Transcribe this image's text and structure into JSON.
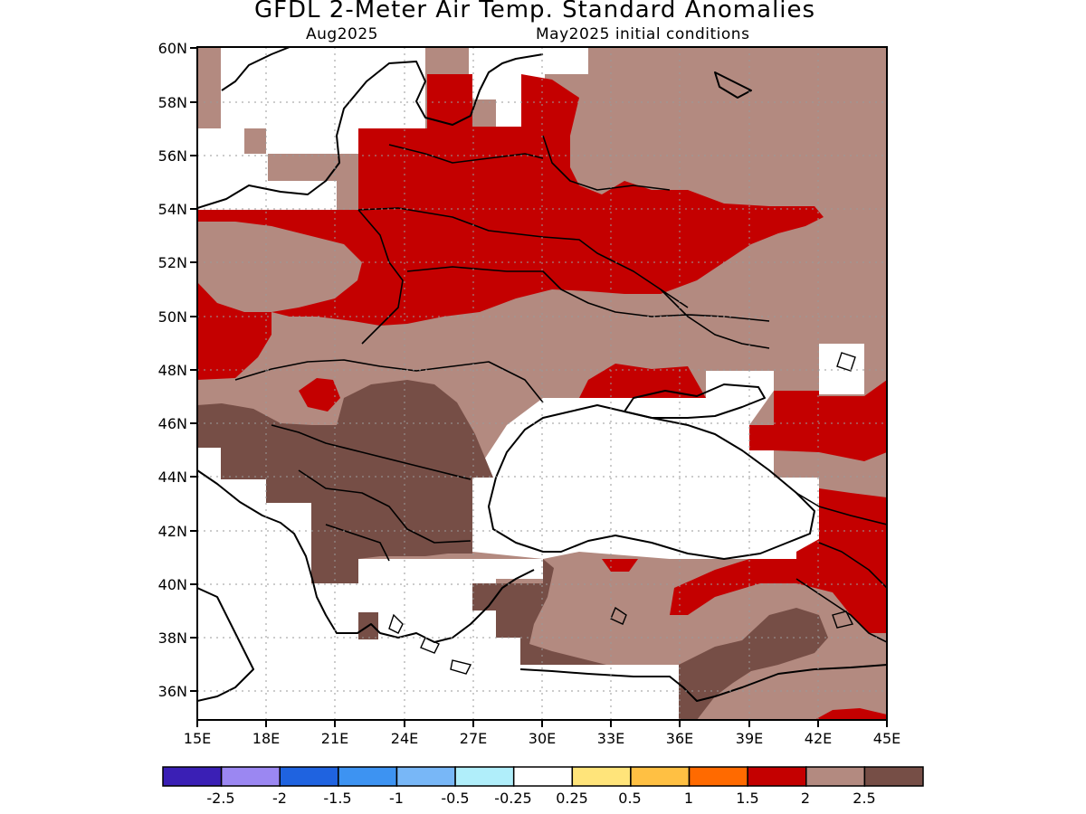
{
  "title": "GFDL 2-Meter Air Temp. Standard Anomalies",
  "subtitle_left": "Aug2025",
  "subtitle_right": "May2025 initial conditions",
  "lat_labels": [
    "60N",
    "58N",
    "56N",
    "54N",
    "52N",
    "50N",
    "48N",
    "46N",
    "44N",
    "42N",
    "40N",
    "38N",
    "36N"
  ],
  "lon_labels": [
    "15E",
    "18E",
    "21E",
    "24E",
    "27E",
    "30E",
    "33E",
    "36E",
    "39E",
    "42E",
    "45E"
  ],
  "colorbar": {
    "colors": [
      "#3a1fb5",
      "#9b87f2",
      "#1f63e0",
      "#3d93f2",
      "#78b7f7",
      "#b0eefa",
      "#ffffff",
      "#ffe47a",
      "#ffc043",
      "#ff6a00",
      "#c40000",
      "#b38a80",
      "#764e46"
    ],
    "labels": [
      "-2.5",
      "-2",
      "-1.5",
      "-1",
      "-0.5",
      "-0.25",
      "0.25",
      "0.5",
      "1",
      "1.5",
      "2",
      "2.5"
    ]
  },
  "colors": {
    "brown_light": "#b38a80",
    "red": "#c40000",
    "brown_dark": "#764e46"
  }
}
